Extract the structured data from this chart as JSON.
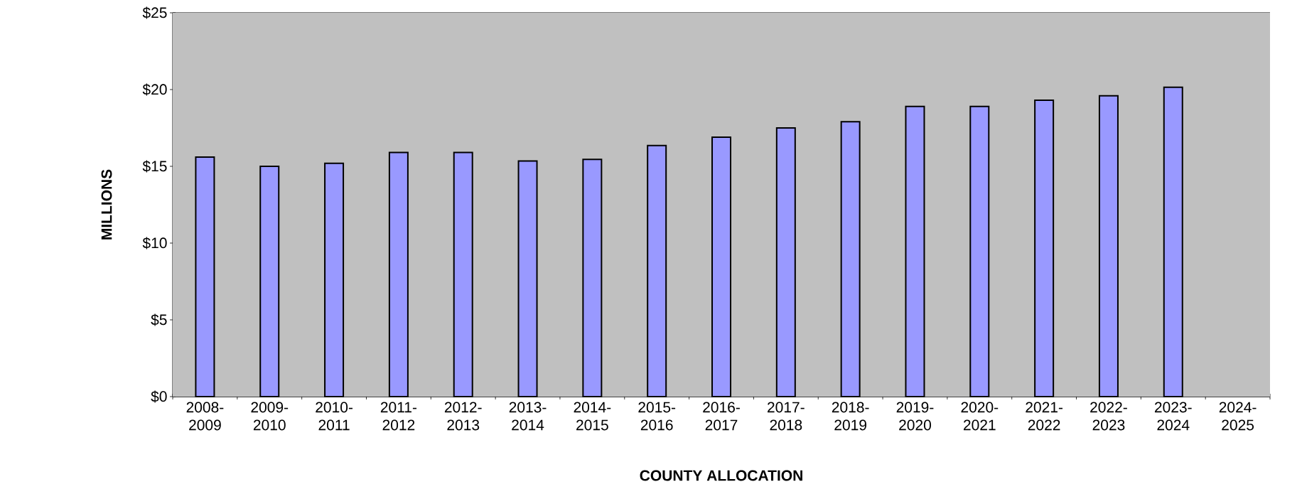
{
  "chart_data": {
    "type": "bar",
    "xlabel": "COUNTY ALLOCATION",
    "ylabel": "MILLIONS",
    "categories": [
      "2008-2009",
      "2009-2010",
      "2010-2011",
      "2011-2012",
      "2012-2013",
      "2013-2014",
      "2014-2015",
      "2015-2016",
      "2016-2017",
      "2017-2018",
      "2018-2019",
      "2019-2020",
      "2020-2021",
      "2021-2022",
      "2022-2023",
      "2023-2024",
      "2024-2025"
    ],
    "values": [
      15.6,
      15.0,
      15.2,
      15.9,
      15.9,
      15.35,
      15.45,
      16.35,
      16.9,
      17.5,
      17.9,
      18.9,
      18.9,
      19.3,
      19.6,
      20.15,
      null
    ],
    "color": "#9999ff",
    "ylim": [
      0,
      25
    ],
    "yticks": [
      {
        "value": 0,
        "label": "$0"
      },
      {
        "value": 5,
        "label": "$5"
      },
      {
        "value": 10,
        "label": "$10"
      },
      {
        "value": 15,
        "label": "$15"
      },
      {
        "value": 20,
        "label": "$20"
      },
      {
        "value": 25,
        "label": "$25"
      }
    ],
    "grid": "y"
  }
}
